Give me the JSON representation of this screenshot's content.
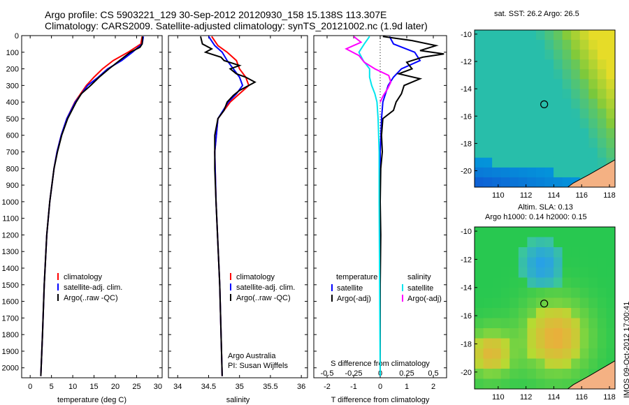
{
  "header": {
    "line1": "Argo profile: CS 5903221_129 30-Sep-2012 20120930_158 15.138S 113.307E",
    "line2": "Climatology: CARS2009. Satellite-adjusted climatology: synTS_20121002.nc (1.9d later)"
  },
  "footer": {
    "stamp": "IMOS 09-Oct-2012 17:00:41"
  },
  "colors": {
    "climatology": "#ff0000",
    "satellite": "#0000ff",
    "argo": "#000000",
    "satellite_salinity": "#00e5ee",
    "argo_salinity": "#ff00ff",
    "land": "#f4b183",
    "coast": "#000000"
  },
  "chart_data": [
    {
      "type": "line",
      "xlabel": "temperature (deg C)",
      "ylabel": "",
      "xlim": [
        -2,
        31
      ],
      "ylim": [
        2060,
        0
      ],
      "xticks": [
        "0",
        "5",
        "10",
        "15",
        "20",
        "25",
        "30"
      ],
      "xtick_values": [
        0,
        5,
        10,
        15,
        20,
        25,
        30
      ],
      "yticks": [
        "0",
        "100",
        "200",
        "300",
        "400",
        "500",
        "600",
        "700",
        "800",
        "900",
        "1000",
        "1100",
        "1200",
        "1300",
        "1400",
        "1500",
        "1600",
        "1700",
        "1800",
        "1900",
        "2000"
      ],
      "ytick_values": [
        0,
        100,
        200,
        300,
        400,
        500,
        600,
        700,
        800,
        900,
        1000,
        1100,
        1200,
        1300,
        1400,
        1500,
        1600,
        1700,
        1800,
        1900,
        2000
      ],
      "legend": [
        "climatology",
        "satellite-adj. clim.",
        "Argo(..raw -QC)"
      ],
      "series": [
        {
          "name": "climatology",
          "color": "#ff0000",
          "depth": [
            5,
            50,
            100,
            150,
            200,
            250,
            300,
            400,
            500,
            600,
            700,
            800,
            1000,
            1200,
            1500,
            1800,
            2050
          ],
          "value": [
            26.3,
            26.0,
            23.0,
            19.5,
            17.0,
            15.0,
            13.2,
            10.5,
            8.6,
            7.3,
            6.3,
            5.6,
            4.6,
            3.9,
            3.3,
            2.9,
            2.5
          ]
        },
        {
          "name": "satellite-adj. clim.",
          "color": "#0000ff",
          "depth": [
            5,
            50,
            100,
            150,
            200,
            250,
            300,
            400,
            500,
            600,
            700,
            800,
            1000,
            1200,
            1500,
            1800,
            2050
          ],
          "value": [
            26.6,
            26.3,
            24.0,
            21.5,
            18.2,
            16.0,
            13.5,
            10.6,
            8.6,
            7.3,
            6.3,
            5.6,
            4.6,
            3.9,
            3.3,
            2.9,
            2.5
          ]
        },
        {
          "name": "Argo(..raw -QC)",
          "color": "#000000",
          "depth": [
            5,
            50,
            70,
            100,
            150,
            200,
            250,
            300,
            350,
            400,
            500,
            600,
            700,
            800,
            1000,
            1200,
            1500,
            1800,
            2050
          ],
          "value": [
            26.4,
            26.3,
            25.8,
            23.5,
            21.0,
            18.5,
            16.2,
            14.2,
            12.0,
            10.8,
            8.8,
            7.4,
            6.4,
            5.6,
            4.6,
            3.9,
            3.3,
            2.9,
            2.5
          ]
        }
      ]
    },
    {
      "type": "line",
      "xlabel": "salinity",
      "xlim": [
        33.85,
        36.1
      ],
      "ylim": [
        2060,
        0
      ],
      "xticks": [
        "34",
        "34.5",
        "35",
        "35.5",
        "36"
      ],
      "xtick_values": [
        34,
        34.5,
        35,
        35.5,
        36
      ],
      "legend": [
        "climatology",
        "satellite-adj. clim.",
        "Argo(..raw -QC)"
      ],
      "annotation": [
        "Argo Australia",
        "PI: Susan Wijffels"
      ],
      "series": [
        {
          "name": "climatology",
          "color": "#ff0000",
          "depth": [
            5,
            60,
            100,
            150,
            200,
            250,
            300,
            350,
            400,
            500,
            700,
            1000,
            1500,
            2050
          ],
          "value": [
            34.55,
            34.65,
            34.8,
            34.95,
            35.0,
            35.1,
            35.15,
            35.0,
            34.85,
            34.65,
            34.6,
            34.62,
            34.68,
            34.72
          ]
        },
        {
          "name": "satellite-adj. clim.",
          "color": "#0000ff",
          "depth": [
            5,
            60,
            100,
            150,
            200,
            250,
            300,
            350,
            400,
            500,
            700,
            1000,
            1500,
            2050
          ],
          "value": [
            34.5,
            34.6,
            34.72,
            34.8,
            34.9,
            35.0,
            35.05,
            34.95,
            34.82,
            34.65,
            34.6,
            34.62,
            34.68,
            34.72
          ]
        },
        {
          "name": "Argo(..raw -QC)",
          "color": "#000000",
          "depth": [
            5,
            50,
            80,
            100,
            130,
            150,
            180,
            200,
            230,
            250,
            280,
            300,
            330,
            360,
            400,
            450,
            500,
            600,
            800,
            1000,
            1500,
            2050
          ],
          "value": [
            34.37,
            34.4,
            34.55,
            34.45,
            34.7,
            34.75,
            35.0,
            34.85,
            34.95,
            35.1,
            35.25,
            35.15,
            35.0,
            34.9,
            34.8,
            34.75,
            34.65,
            34.6,
            34.6,
            34.62,
            34.68,
            34.72
          ]
        }
      ]
    },
    {
      "type": "line",
      "xlabel": "T difference from climatology",
      "top_axis_label": "S difference from climatology",
      "xlim": [
        -2.5,
        2.5
      ],
      "ylim": [
        2060,
        0
      ],
      "xticks": [
        "-2",
        "-1",
        "0",
        "1",
        "2"
      ],
      "xtick_values": [
        -2,
        -1,
        0,
        1,
        2
      ],
      "top_xticks": [
        "-0.5",
        "-0.25",
        "0",
        "0.25",
        "0.5"
      ],
      "top_xtick_values": [
        -0.5,
        -0.25,
        0,
        0.25,
        0.5
      ],
      "legend": {
        "temperature": {
          "heading": "temperature",
          "items": [
            "satellite",
            "Argo(-adj)"
          ]
        },
        "salinity": {
          "heading": "salinity",
          "items": [
            "satellite",
            "Argo(-adj)"
          ]
        }
      },
      "series": [
        {
          "name": "satellite",
          "quantity": "temperature",
          "color": "#0000ff",
          "depth": [
            5,
            50,
            100,
            150,
            200,
            250,
            300,
            400,
            500,
            700,
            1000,
            2050
          ],
          "value": [
            0.35,
            0.5,
            1.3,
            1.5,
            0.8,
            0.5,
            0.3,
            0.1,
            0.05,
            0,
            0,
            0
          ]
        },
        {
          "name": "Argo(-adj)",
          "quantity": "temperature",
          "color": "#000000",
          "depth": [
            5,
            30,
            60,
            90,
            110,
            130,
            160,
            200,
            230,
            260,
            300,
            350,
            400,
            450,
            500,
            600,
            700,
            800,
            1000,
            1200,
            1500,
            2050
          ],
          "value": [
            0.1,
            1.2,
            2.1,
            1.5,
            2.4,
            1.6,
            1.0,
            1.2,
            0.7,
            1.5,
            0.9,
            0.8,
            0.6,
            0.5,
            0.1,
            0.05,
            0.08,
            0.02,
            0,
            0.02,
            0,
            0
          ]
        },
        {
          "name": "satellite",
          "quantity": "salinity",
          "color": "#00e5ee",
          "depth": [
            5,
            50,
            100,
            150,
            200,
            250,
            300,
            350,
            400,
            500,
            700,
            1000,
            2050
          ],
          "value": [
            -0.1,
            -0.15,
            -0.2,
            -0.16,
            -0.1,
            -0.1,
            -0.08,
            -0.05,
            -0.03,
            -0.02,
            -0.01,
            -0.01,
            0
          ]
        },
        {
          "name": "Argo(-adj)",
          "quantity": "salinity",
          "color": "#ff00ff",
          "depth": [
            5,
            40,
            80,
            120,
            160,
            200,
            240,
            280,
            320,
            360,
            400
          ],
          "value": [
            -0.25,
            -0.18,
            -0.32,
            -0.2,
            -0.15,
            -0.05,
            0.08,
            0.1,
            0.07,
            0.03,
            0
          ]
        }
      ]
    },
    {
      "type": "heatmap",
      "title": "sat. SST: 26.2  Argo: 26.5",
      "xlim": [
        108.3,
        118.4
      ],
      "ylim": [
        -21.2,
        -9.7
      ],
      "xticks": [
        "110",
        "112",
        "114",
        "116",
        "118"
      ],
      "xtick_values": [
        110,
        112,
        114,
        116,
        118
      ],
      "yticks": [
        "-10",
        "-12",
        "-14",
        "-16",
        "-18",
        "-20"
      ],
      "ytick_values": [
        -10,
        -12,
        -14,
        -16,
        -18,
        -20
      ],
      "marker": {
        "lon": 113.307,
        "lat": -15.138
      }
    },
    {
      "type": "heatmap",
      "title": [
        "Altim. SLA: 0.13",
        "Argo h1000: 0.14  h2000: 0.15"
      ],
      "xlim": [
        108.3,
        118.4
      ],
      "ylim": [
        -21.2,
        -9.7
      ],
      "xticks": [
        "110",
        "112",
        "114",
        "116",
        "118"
      ],
      "xtick_values": [
        110,
        112,
        114,
        116,
        118
      ],
      "yticks": [
        "-10",
        "-12",
        "-14",
        "-16",
        "-18",
        "-20"
      ],
      "ytick_values": [
        -10,
        -12,
        -14,
        -16,
        -18,
        -20
      ],
      "marker": {
        "lon": 113.307,
        "lat": -15.138
      }
    }
  ]
}
